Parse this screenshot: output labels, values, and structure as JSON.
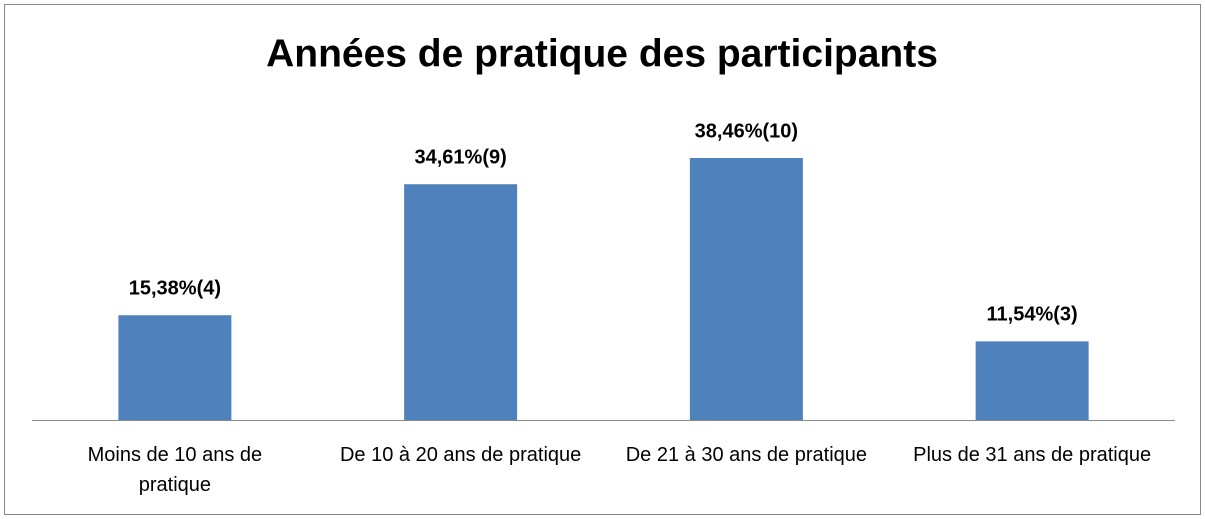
{
  "chart_data": {
    "type": "bar",
    "title": "Années de pratique des participants",
    "categories": [
      "Moins de 10 ans de pratique",
      "De 10 à 20 ans de pratique",
      "De 21 à 30 ans de pratique",
      "Plus de 31 ans de pratique"
    ],
    "values": [
      15.38,
      34.61,
      38.46,
      11.54
    ],
    "value_labels": [
      "15,38%(4)",
      "34,61%(9)",
      "38,46%(10)",
      "11,54%(3)"
    ],
    "color": "#4f81bd"
  }
}
